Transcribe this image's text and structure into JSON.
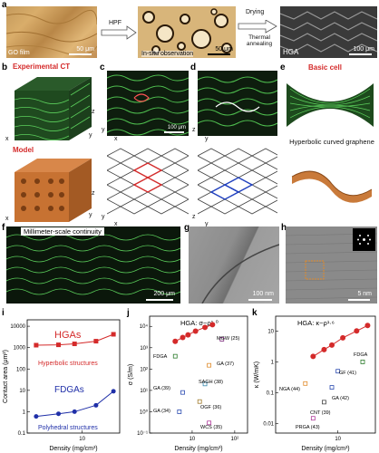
{
  "panel_a": {
    "letter": "a",
    "img1_label": "GO film",
    "img1_scale": "50 μm",
    "arrow1_label": "HPF",
    "img2_label": "In-situ observation",
    "img2_scale": "50 μm",
    "arrow2_top": "Drying",
    "arrow2_bottom": "Thermal annealing",
    "img3_label": "HGA",
    "img3_scale": "100 μm"
  },
  "panel_b": {
    "letter": "b",
    "top_label": "Experimental CT",
    "bottom_label": "Model",
    "axis_x": "x",
    "axis_y": "y",
    "axis_z": "z"
  },
  "panel_c": {
    "letter": "c",
    "scale": "100 μm",
    "axis_x": "x",
    "axis_y": "y"
  },
  "panel_d": {
    "letter": "d",
    "axis_x": "x",
    "axis_y": "y",
    "axis_z": "z"
  },
  "panel_e": {
    "letter": "e",
    "title": "Basic cell",
    "subtitle": "Hyperbolic curved graphene"
  },
  "panel_f": {
    "letter": "f",
    "label": "Millimeter-scale continuity",
    "scale": "200 μm"
  },
  "panel_g": {
    "letter": "g",
    "scale": "100 nm"
  },
  "panel_h": {
    "letter": "h",
    "scale": "5 nm"
  },
  "chart_data": [
    {
      "panel": "i",
      "type": "line",
      "xlabel": "Density (mg/cm³)",
      "ylabel": "Contact area (μm²)",
      "xscale": "log",
      "yscale": "log",
      "xlim": [
        2,
        30
      ],
      "ylim": [
        0.1,
        20000
      ],
      "yticks": [
        "0.1",
        "1",
        "10",
        "100",
        "1000",
        "10000"
      ],
      "xticks": [
        "10"
      ],
      "annotations": [
        "HGAs",
        "Hyperbolic structures",
        "FDGAs",
        "Polyhedral structures"
      ],
      "series": [
        {
          "name": "HGAs",
          "color": "#d42a2a",
          "x": [
            2.6,
            5,
            8,
            15,
            25
          ],
          "y": [
            1300,
            1350,
            1500,
            2000,
            4200
          ]
        },
        {
          "name": "FDGAs",
          "color": "#1f2fa8",
          "x": [
            2.6,
            5,
            8,
            15,
            25
          ],
          "y": [
            0.6,
            0.8,
            1.0,
            2.0,
            9.0
          ]
        }
      ]
    },
    {
      "panel": "j",
      "type": "scatter",
      "title": "HGA: σ~ρ¹·⁰",
      "xlabel": "Density (mg/cm³)",
      "ylabel": "σ (S/m)",
      "xscale": "log",
      "yscale": "log",
      "yticks": [
        "10⁻¹",
        "10⁰",
        "10¹",
        "10²",
        "10³",
        "10⁴"
      ],
      "xticks": [
        "10",
        "10²"
      ],
      "labels": [
        "FDGA",
        "MGW (25)",
        "GA (37)",
        "SAGH (38)",
        "GA (39)",
        "OGF (36)",
        "GA (34)",
        "WCS (35)"
      ],
      "hga": {
        "color": "#d42a2a",
        "x": [
          4,
          6,
          8,
          12,
          20,
          30
        ],
        "y": [
          2000,
          3000,
          4000,
          6000,
          9000,
          12000
        ]
      }
    },
    {
      "panel": "k",
      "type": "scatter",
      "title": "HGA: κ~ρ¹·⁶",
      "xlabel": "Density (mg/cm³)",
      "ylabel": "κ (W/mK)",
      "xscale": "log",
      "yscale": "log",
      "yticks": [
        "0.01",
        "0.1",
        "1",
        "10"
      ],
      "xticks": [
        "10"
      ],
      "labels": [
        "FDGA",
        "GF (41)",
        "NGA (44)",
        "GA (42)",
        "CNT (39)",
        "PRGA (43)"
      ],
      "hga": {
        "color": "#d42a2a",
        "x": [
          4,
          6,
          8,
          12,
          20,
          30
        ],
        "y": [
          1.5,
          2.5,
          3.5,
          6,
          10,
          15
        ]
      }
    }
  ]
}
